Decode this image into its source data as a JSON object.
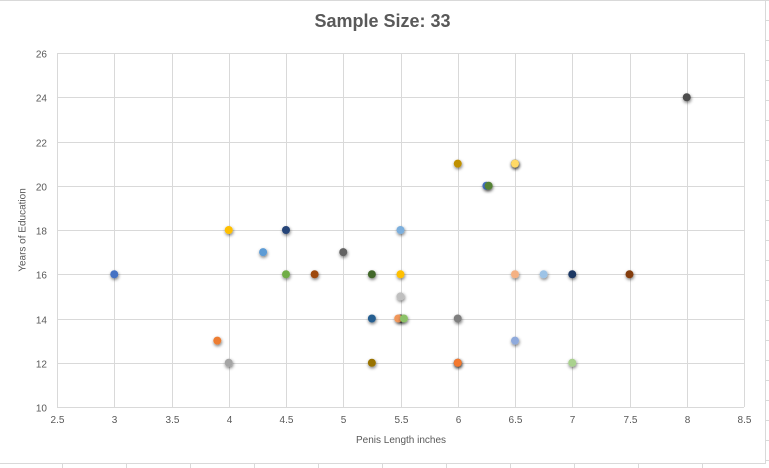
{
  "chart_data": {
    "type": "scatter",
    "title": "Sample Size: 33",
    "xlabel": "Penis Length inches",
    "ylabel": "Years of Education",
    "xlim": [
      2.5,
      8.5
    ],
    "ylim": [
      10,
      26
    ],
    "x_ticks": [
      "2.5",
      "3",
      "3.5",
      "4",
      "4.5",
      "5",
      "5.5",
      "6",
      "6.5",
      "7",
      "7.5",
      "8",
      "8.5"
    ],
    "y_ticks": [
      "10",
      "12",
      "14",
      "16",
      "18",
      "20",
      "22",
      "24",
      "26"
    ],
    "grid": true,
    "legend": "none",
    "points": [
      {
        "x": 3,
        "y": 16,
        "color": "#4472c4"
      },
      {
        "x": 3.9,
        "y": 13,
        "color": "#ed7d31"
      },
      {
        "x": 4,
        "y": 12,
        "color": "#a5a5a5"
      },
      {
        "x": 4,
        "y": 18,
        "color": "#ffc000"
      },
      {
        "x": 4.3,
        "y": 17,
        "color": "#5b9bd5"
      },
      {
        "x": 4.5,
        "y": 18,
        "color": "#264478"
      },
      {
        "x": 4.5,
        "y": 16,
        "color": "#70ad47"
      },
      {
        "x": 4.75,
        "y": 16,
        "color": "#9e480e"
      },
      {
        "x": 5,
        "y": 17,
        "color": "#636363"
      },
      {
        "x": 5.25,
        "y": 16,
        "color": "#43682b"
      },
      {
        "x": 5.25,
        "y": 14,
        "color": "#255e91"
      },
      {
        "x": 5.25,
        "y": 12,
        "color": "#997300"
      },
      {
        "x": 5.5,
        "y": 18,
        "color": "#7cafdd"
      },
      {
        "x": 5.5,
        "y": 16,
        "color": "#ffc000"
      },
      {
        "x": 5.5,
        "y": 15,
        "color": "#bfbfbf"
      },
      {
        "x": 5.5,
        "y": 14,
        "color": "#3b3b3b"
      },
      {
        "x": 5.48,
        "y": 14,
        "color": "#f1975a"
      },
      {
        "x": 5.53,
        "y": 14,
        "color": "#8cc168"
      },
      {
        "x": 6,
        "y": 21,
        "color": "#bf9000"
      },
      {
        "x": 6,
        "y": 14,
        "color": "#7f7f7f"
      },
      {
        "x": 6,
        "y": 12,
        "color": "#3b3b3b"
      },
      {
        "x": 6,
        "y": 12,
        "color": "#f4792f"
      },
      {
        "x": 6.25,
        "y": 20,
        "color": "#4472c4"
      },
      {
        "x": 6.27,
        "y": 20,
        "color": "#548235"
      },
      {
        "x": 6.5,
        "y": 21,
        "color": "#3b3b3b"
      },
      {
        "x": 6.5,
        "y": 21,
        "color": "#ffd966"
      },
      {
        "x": 6.5,
        "y": 16,
        "color": "#f4b183"
      },
      {
        "x": 6.5,
        "y": 13,
        "color": "#8faadc"
      },
      {
        "x": 6.75,
        "y": 16,
        "color": "#9dc3e6"
      },
      {
        "x": 7,
        "y": 16,
        "color": "#1f3864"
      },
      {
        "x": 7,
        "y": 12,
        "color": "#a9d18e"
      },
      {
        "x": 7.5,
        "y": 16,
        "color": "#843c0c"
      },
      {
        "x": 8,
        "y": 24,
        "color": "#4d4d4d"
      }
    ]
  },
  "colors": {
    "gridline": "#d9d9d9",
    "text": "#595959"
  }
}
